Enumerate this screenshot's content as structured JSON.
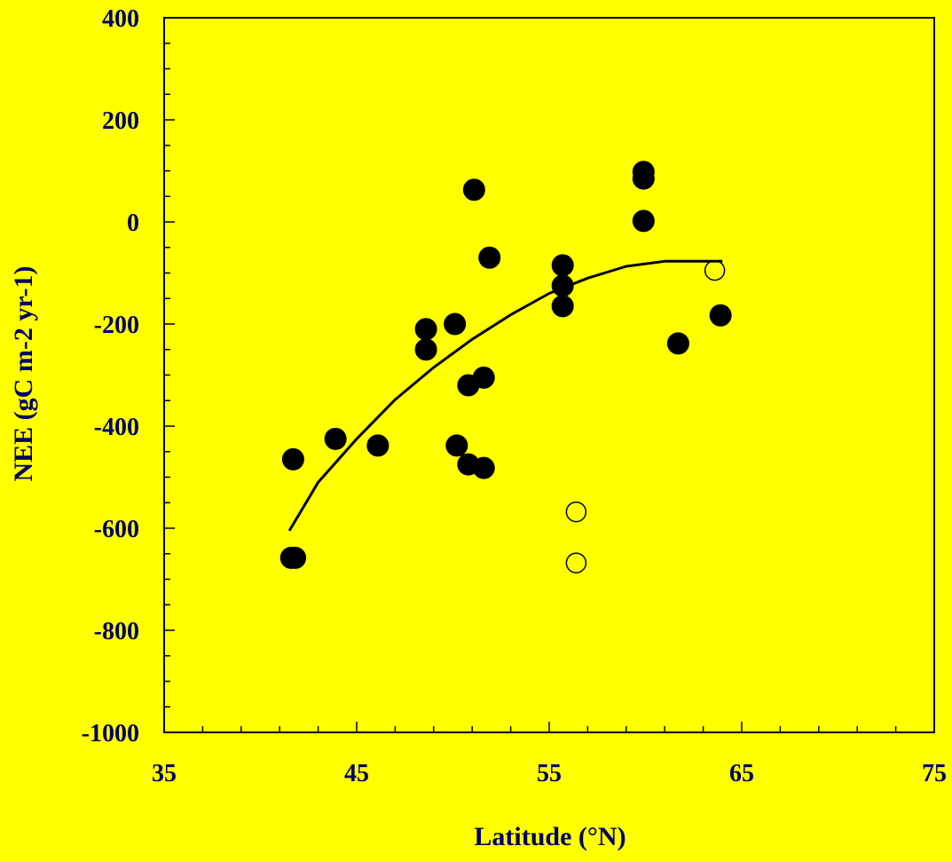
{
  "chart_data": {
    "type": "scatter",
    "title": "",
    "xlabel": "Latitude (°N)",
    "ylabel": "NEE (gC m-2 yr-1)",
    "xlim": [
      35,
      75
    ],
    "ylim": [
      -1000,
      400
    ],
    "xticks": [
      "35",
      "45",
      "55",
      "65",
      "75"
    ],
    "yticks": [
      "400",
      "200",
      "0",
      "-200",
      "-400",
      "-600",
      "-800",
      "-1000"
    ],
    "grid": false,
    "colors": {
      "background": "#FFFF00",
      "text": "#000066",
      "marker": "#000000",
      "line": "#000000"
    },
    "series": [
      {
        "marker": "filled-circle",
        "points": [
          [
            41.7,
            -465
          ],
          [
            41.6,
            -658
          ],
          [
            41.8,
            -658
          ],
          [
            43.9,
            -425
          ],
          [
            46.1,
            -438
          ],
          [
            48.6,
            -210
          ],
          [
            48.6,
            -250
          ],
          [
            50.1,
            -200
          ],
          [
            50.2,
            -438
          ],
          [
            50.8,
            -320
          ],
          [
            50.8,
            -475
          ],
          [
            51.1,
            63
          ],
          [
            51.6,
            -305
          ],
          [
            51.6,
            -482
          ],
          [
            51.9,
            -70
          ],
          [
            55.7,
            -85
          ],
          [
            55.7,
            -125
          ],
          [
            55.7,
            -165
          ],
          [
            59.9,
            98
          ],
          [
            59.9,
            85
          ],
          [
            59.9,
            2
          ],
          [
            61.7,
            -238
          ],
          [
            63.9,
            -183
          ]
        ]
      },
      {
        "marker": "open-circle",
        "points": [
          [
            56.4,
            -568
          ],
          [
            56.4,
            -668
          ],
          [
            63.6,
            -95
          ]
        ]
      },
      {
        "type": "line",
        "x": [
          41.5,
          43,
          45,
          47,
          49,
          51,
          53,
          55,
          57,
          59,
          61,
          63,
          64
        ],
        "y": [
          -605,
          -510,
          -425,
          -348,
          -285,
          -230,
          -182,
          -140,
          -110,
          -87,
          -77,
          -77,
          -77
        ]
      }
    ]
  }
}
